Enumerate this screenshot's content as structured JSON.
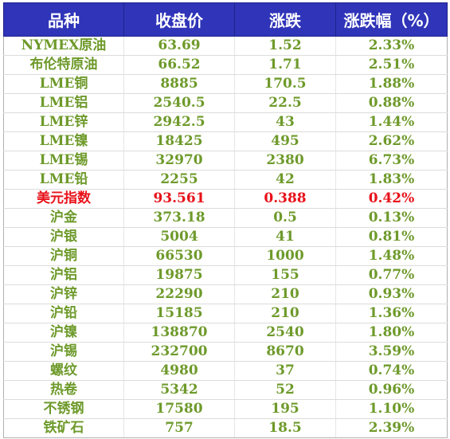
{
  "table": {
    "headers": [
      "品种",
      "收盘价",
      "涨跌",
      "涨跌幅（%）"
    ],
    "rows": [
      [
        "NYMEX原油",
        "63.69",
        "1.52",
        "2.33%"
      ],
      [
        "布伦特原油",
        "66.52",
        "1.71",
        "2.51%"
      ],
      [
        "LME铜",
        "8885",
        "170.5",
        "1.88%"
      ],
      [
        "LME铝",
        "2540.5",
        "22.5",
        "0.88%"
      ],
      [
        "LME锌",
        "2942.5",
        "43",
        "1.44%"
      ],
      [
        "LME镍",
        "18425",
        "495",
        "2.62%"
      ],
      [
        "LME锡",
        "32970",
        "2380",
        "6.73%"
      ],
      [
        "LME铅",
        "2255",
        "42",
        "1.83%"
      ],
      [
        "美元指数",
        "93.561",
        "0.388",
        "0.42%"
      ],
      [
        "沪金",
        "373.18",
        "0.5",
        "0.13%"
      ],
      [
        "沪银",
        "5004",
        "41",
        "0.81%"
      ],
      [
        "沪铜",
        "66530",
        "1000",
        "1.48%"
      ],
      [
        "沪铝",
        "19875",
        "155",
        "0.77%"
      ],
      [
        "沪锌",
        "22290",
        "210",
        "0.93%"
      ],
      [
        "沪铅",
        "15185",
        "210",
        "1.36%"
      ],
      [
        "沪镍",
        "138870",
        "2540",
        "1.80%"
      ],
      [
        "沪锡",
        "232700",
        "8670",
        "3.59%"
      ],
      [
        "螺纹",
        "4980",
        "37",
        "0.74%"
      ],
      [
        "热卷",
        "5342",
        "52",
        "0.96%"
      ],
      [
        "不锈钢",
        "17580",
        "195",
        "1.10%"
      ],
      [
        "铁矿石",
        "757",
        "18.5",
        "2.39%"
      ]
    ],
    "highlight_row_index": 8
  },
  "colors": {
    "header_background": "#2f34b8",
    "header_text": "#ffffff",
    "cell_text": "#6e9a2b",
    "highlight_text": "#e8121a"
  }
}
